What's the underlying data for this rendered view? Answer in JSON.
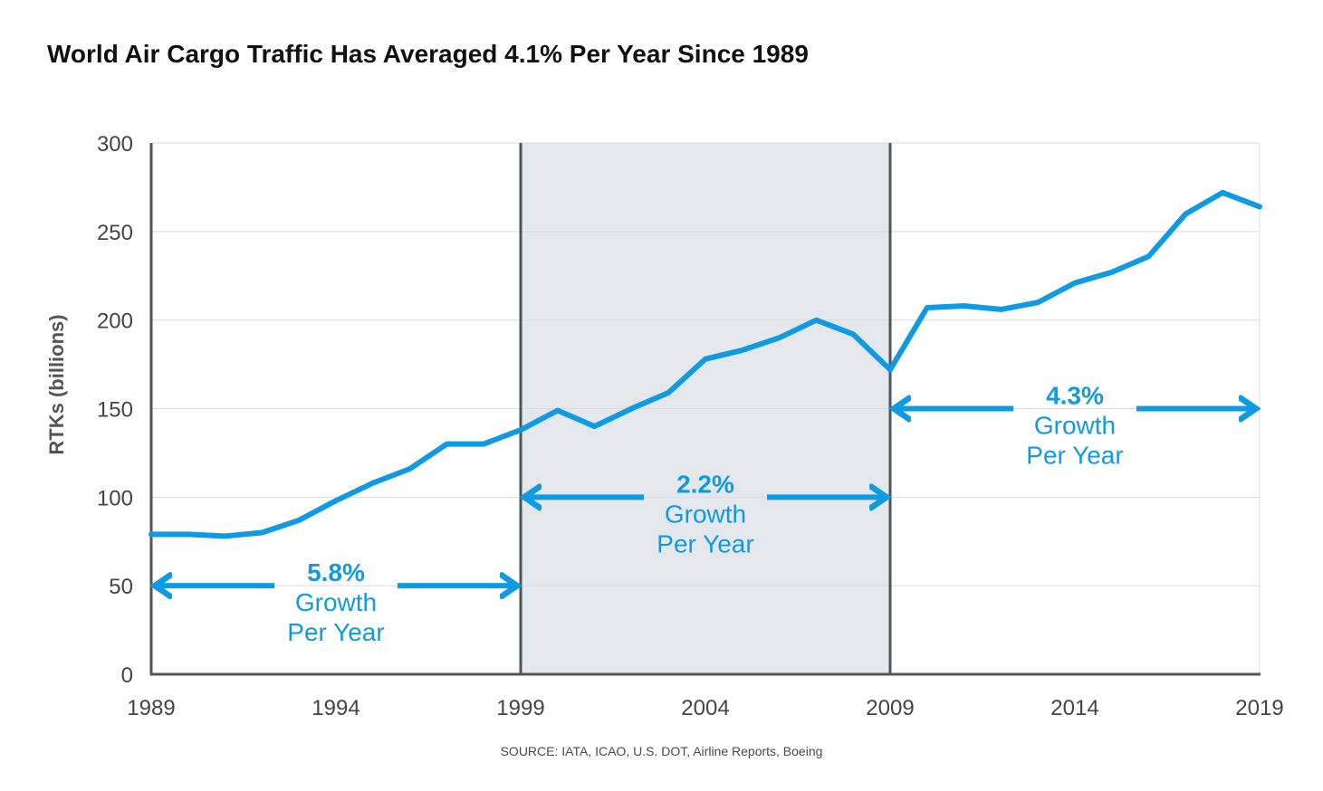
{
  "title": "World Air Cargo Traffic Has Averaged 4.1% Per Year Since 1989",
  "source": "SOURCE: IATA, ICAO, U.S. DOT, Airline Reports, Boeing",
  "colors": {
    "line": "#0f9be3",
    "shade": "#e4e8ec",
    "divider": "#4d5560",
    "grid": "#dcdcdc",
    "axis": "#555555"
  },
  "chart_data": {
    "type": "line",
    "title": "World Air Cargo Traffic Has Averaged 4.1% Per Year Since 1989",
    "xlabel": "",
    "ylabel": "RTKs (billions)",
    "xlim": [
      1989,
      2019
    ],
    "ylim": [
      0,
      300
    ],
    "grid": true,
    "x_ticks": [
      "1989",
      "1994",
      "1999",
      "2004",
      "2009",
      "2014",
      "2019"
    ],
    "y_ticks": [
      "0",
      "50",
      "100",
      "150",
      "200",
      "250",
      "300"
    ],
    "series": [
      {
        "x": [
          1989,
          1990,
          1991,
          1992,
          1993,
          1994,
          1995,
          1996,
          1997,
          1998,
          1999,
          2000,
          2001,
          2002,
          2003,
          2004,
          2005,
          2006,
          2007,
          2008,
          2009,
          2010,
          2011,
          2012,
          2013,
          2014,
          2015,
          2016,
          2017,
          2018,
          2019
        ],
        "values": [
          79,
          79,
          78,
          80,
          87,
          98,
          108,
          116,
          130,
          130,
          138,
          149,
          140,
          150,
          159,
          178,
          183,
          190,
          200,
          192,
          172,
          207,
          208,
          206,
          210,
          221,
          227,
          236,
          260,
          272,
          264
        ]
      }
    ],
    "shaded_period": [
      1999,
      2009
    ],
    "annotations": [
      {
        "rate": "5.8%",
        "line1": "Growth",
        "line2": "Per Year",
        "from": 1989,
        "to": 1999,
        "y": 50
      },
      {
        "rate": "2.2%",
        "line1": "Growth",
        "line2": "Per Year",
        "from": 1999,
        "to": 2009,
        "y": 100
      },
      {
        "rate": "4.3%",
        "line1": "Growth",
        "line2": "Per Year",
        "from": 2009,
        "to": 2019,
        "y": 150
      }
    ]
  }
}
